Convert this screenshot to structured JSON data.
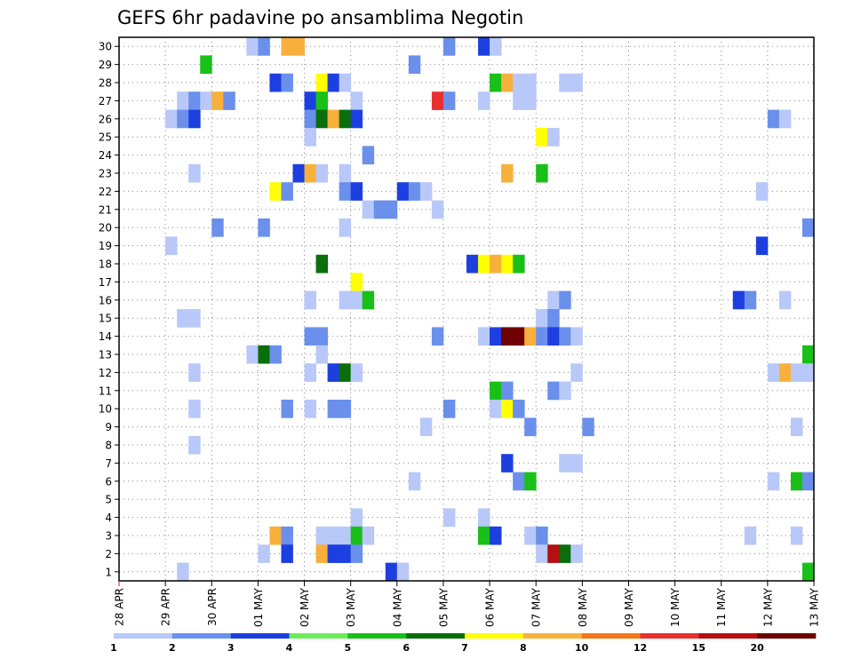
{
  "chart_data": {
    "type": "heatmap",
    "title": "GEFS 6hr padavine po ansamblima Negotin",
    "xlabel": "",
    "ylabel": "",
    "x_tick_labels": [
      "28 APR",
      "29 APR",
      "30 APR",
      "01 MAY",
      "02 MAY",
      "03 MAY",
      "04 MAY",
      "05 MAY",
      "06 MAY",
      "07 MAY",
      "08 MAY",
      "09 MAY",
      "10 MAY",
      "11 MAY",
      "12 MAY",
      "13 MAY"
    ],
    "x_steps_per_day": 4,
    "x_total_steps": 60,
    "y_members": [
      1,
      2,
      3,
      4,
      5,
      6,
      7,
      8,
      9,
      10,
      11,
      12,
      13,
      14,
      15,
      16,
      17,
      18,
      19,
      20,
      21,
      22,
      23,
      24,
      25,
      26,
      27,
      28,
      29,
      30
    ],
    "grid": true,
    "colorbar": {
      "position": "bottom",
      "labels": [
        "1",
        "2",
        "3",
        "4",
        "5",
        "6",
        "7",
        "8",
        "10",
        "12",
        "15",
        "20"
      ],
      "colors": [
        "#b8c8f8",
        "#6a90ec",
        "#1d3fe0",
        "#6cec5c",
        "#18c018",
        "#0a6e0a",
        "#ffff00",
        "#f8b03c",
        "#f47818",
        "#e83030",
        "#b41010",
        "#6e0000"
      ]
    },
    "cells": [
      [
        30,
        11,
        1
      ],
      [
        30,
        12,
        2
      ],
      [
        30,
        14,
        8
      ],
      [
        30,
        15,
        8
      ],
      [
        30,
        28,
        2
      ],
      [
        30,
        31,
        3
      ],
      [
        30,
        32,
        1
      ],
      [
        29,
        7,
        5
      ],
      [
        29,
        25,
        2
      ],
      [
        28,
        13,
        3
      ],
      [
        28,
        14,
        2
      ],
      [
        28,
        17,
        7
      ],
      [
        28,
        18,
        3
      ],
      [
        28,
        19,
        1
      ],
      [
        28,
        32,
        5
      ],
      [
        28,
        33,
        8
      ],
      [
        28,
        34,
        1
      ],
      [
        28,
        35,
        1
      ],
      [
        28,
        38,
        1
      ],
      [
        28,
        39,
        1
      ],
      [
        27,
        5,
        1
      ],
      [
        27,
        6,
        2
      ],
      [
        27,
        7,
        1
      ],
      [
        27,
        8,
        8
      ],
      [
        27,
        9,
        2
      ],
      [
        27,
        16,
        3
      ],
      [
        27,
        17,
        5
      ],
      [
        27,
        20,
        1
      ],
      [
        27,
        27,
        12
      ],
      [
        27,
        28,
        2
      ],
      [
        27,
        31,
        1
      ],
      [
        27,
        34,
        1
      ],
      [
        27,
        35,
        1
      ],
      [
        26,
        4,
        1
      ],
      [
        26,
        5,
        2
      ],
      [
        26,
        6,
        3
      ],
      [
        26,
        16,
        2
      ],
      [
        26,
        17,
        6
      ],
      [
        26,
        18,
        8
      ],
      [
        26,
        19,
        6
      ],
      [
        26,
        20,
        3
      ],
      [
        26,
        56,
        2
      ],
      [
        26,
        57,
        1
      ],
      [
        25,
        16,
        1
      ],
      [
        25,
        36,
        7
      ],
      [
        25,
        37,
        1
      ],
      [
        24,
        21,
        2
      ],
      [
        23,
        6,
        1
      ],
      [
        23,
        15,
        3
      ],
      [
        23,
        16,
        8
      ],
      [
        23,
        17,
        1
      ],
      [
        23,
        19,
        1
      ],
      [
        23,
        33,
        8
      ],
      [
        23,
        36,
        5
      ],
      [
        22,
        13,
        7
      ],
      [
        22,
        14,
        2
      ],
      [
        22,
        19,
        2
      ],
      [
        22,
        20,
        3
      ],
      [
        22,
        24,
        3
      ],
      [
        22,
        25,
        2
      ],
      [
        22,
        26,
        1
      ],
      [
        22,
        55,
        1
      ],
      [
        21,
        21,
        1
      ],
      [
        21,
        22,
        2
      ],
      [
        21,
        23,
        2
      ],
      [
        21,
        27,
        1
      ],
      [
        20,
        8,
        2
      ],
      [
        20,
        12,
        2
      ],
      [
        20,
        19,
        1
      ],
      [
        20,
        59,
        2
      ],
      [
        19,
        4,
        1
      ],
      [
        19,
        55,
        3
      ],
      [
        18,
        17,
        6
      ],
      [
        18,
        30,
        3
      ],
      [
        18,
        31,
        7
      ],
      [
        18,
        32,
        8
      ],
      [
        18,
        33,
        7
      ],
      [
        18,
        34,
        5
      ],
      [
        17,
        20,
        7
      ],
      [
        16,
        16,
        1
      ],
      [
        16,
        19,
        1
      ],
      [
        16,
        20,
        1
      ],
      [
        16,
        21,
        5
      ],
      [
        16,
        37,
        1
      ],
      [
        16,
        38,
        2
      ],
      [
        16,
        53,
        3
      ],
      [
        16,
        54,
        2
      ],
      [
        16,
        57,
        1
      ],
      [
        15,
        5,
        1
      ],
      [
        15,
        6,
        1
      ],
      [
        15,
        36,
        1
      ],
      [
        15,
        37,
        2
      ],
      [
        14,
        16,
        2
      ],
      [
        14,
        17,
        2
      ],
      [
        14,
        27,
        2
      ],
      [
        14,
        31,
        1
      ],
      [
        14,
        32,
        3
      ],
      [
        14,
        33,
        20
      ],
      [
        14,
        34,
        20
      ],
      [
        14,
        35,
        8
      ],
      [
        14,
        36,
        2
      ],
      [
        14,
        37,
        3
      ],
      [
        14,
        38,
        2
      ],
      [
        14,
        39,
        1
      ],
      [
        13,
        11,
        1
      ],
      [
        13,
        12,
        6
      ],
      [
        13,
        13,
        2
      ],
      [
        13,
        17,
        1
      ],
      [
        13,
        59,
        5
      ],
      [
        12,
        6,
        1
      ],
      [
        12,
        16,
        1
      ],
      [
        12,
        18,
        3
      ],
      [
        12,
        19,
        6
      ],
      [
        12,
        20,
        1
      ],
      [
        12,
        39,
        1
      ],
      [
        12,
        56,
        1
      ],
      [
        12,
        57,
        8
      ],
      [
        12,
        58,
        1
      ],
      [
        12,
        59,
        1
      ],
      [
        11,
        32,
        5
      ],
      [
        11,
        33,
        2
      ],
      [
        11,
        37,
        2
      ],
      [
        11,
        38,
        1
      ],
      [
        10,
        6,
        1
      ],
      [
        10,
        14,
        2
      ],
      [
        10,
        16,
        1
      ],
      [
        10,
        18,
        2
      ],
      [
        10,
        19,
        2
      ],
      [
        10,
        28,
        2
      ],
      [
        10,
        32,
        1
      ],
      [
        10,
        33,
        7
      ],
      [
        10,
        34,
        2
      ],
      [
        9,
        26,
        1
      ],
      [
        9,
        35,
        2
      ],
      [
        9,
        40,
        2
      ],
      [
        9,
        58,
        1
      ],
      [
        8,
        6,
        1
      ],
      [
        7,
        33,
        3
      ],
      [
        7,
        38,
        1
      ],
      [
        7,
        39,
        1
      ],
      [
        6,
        25,
        1
      ],
      [
        6,
        34,
        2
      ],
      [
        6,
        35,
        5
      ],
      [
        6,
        56,
        1
      ],
      [
        6,
        58,
        5
      ],
      [
        6,
        59,
        2
      ],
      [
        4,
        20,
        1
      ],
      [
        4,
        28,
        1
      ],
      [
        4,
        31,
        1
      ],
      [
        3,
        13,
        8
      ],
      [
        3,
        14,
        2
      ],
      [
        3,
        17,
        1
      ],
      [
        3,
        18,
        1
      ],
      [
        3,
        19,
        1
      ],
      [
        3,
        20,
        5
      ],
      [
        3,
        21,
        1
      ],
      [
        3,
        31,
        5
      ],
      [
        3,
        32,
        3
      ],
      [
        3,
        35,
        1
      ],
      [
        3,
        36,
        2
      ],
      [
        3,
        54,
        1
      ],
      [
        3,
        58,
        1
      ],
      [
        2,
        12,
        1
      ],
      [
        2,
        14,
        3
      ],
      [
        2,
        17,
        8
      ],
      [
        2,
        18,
        3
      ],
      [
        2,
        19,
        3
      ],
      [
        2,
        20,
        2
      ],
      [
        2,
        36,
        1
      ],
      [
        2,
        37,
        15
      ],
      [
        2,
        38,
        6
      ],
      [
        2,
        39,
        1
      ],
      [
        1,
        5,
        1
      ],
      [
        1,
        23,
        3
      ],
      [
        1,
        24,
        1
      ],
      [
        1,
        59,
        5
      ]
    ]
  }
}
